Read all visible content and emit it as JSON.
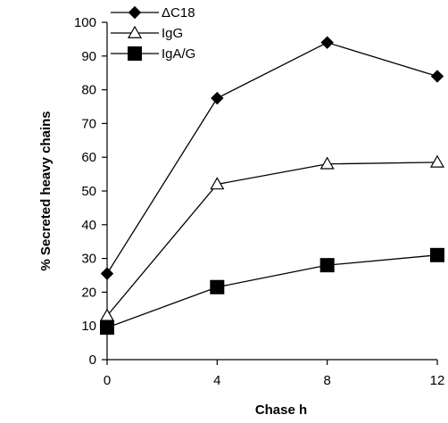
{
  "chart_data": {
    "type": "line",
    "xlabel": "Chase h",
    "ylabel": "% Secreted heavy chains",
    "x": [
      0,
      4,
      8,
      12
    ],
    "xticks": [
      "0",
      "4",
      "8",
      "12"
    ],
    "xlim": [
      0,
      12
    ],
    "ylim": [
      0,
      100
    ],
    "yticks": [
      "0",
      "10",
      "20",
      "30",
      "40",
      "50",
      "60",
      "70",
      "80",
      "90",
      "100"
    ],
    "grid": false,
    "legend_position": "top-left",
    "series": [
      {
        "name": "ΔC18",
        "marker": "filled-diamond",
        "values": [
          25.5,
          77.5,
          94,
          84
        ]
      },
      {
        "name": "IgG",
        "marker": "open-triangle",
        "values": [
          13,
          52,
          58,
          58.5
        ]
      },
      {
        "name": "IgA/G",
        "marker": "filled-square",
        "values": [
          9.5,
          21.5,
          28,
          31
        ]
      }
    ]
  }
}
